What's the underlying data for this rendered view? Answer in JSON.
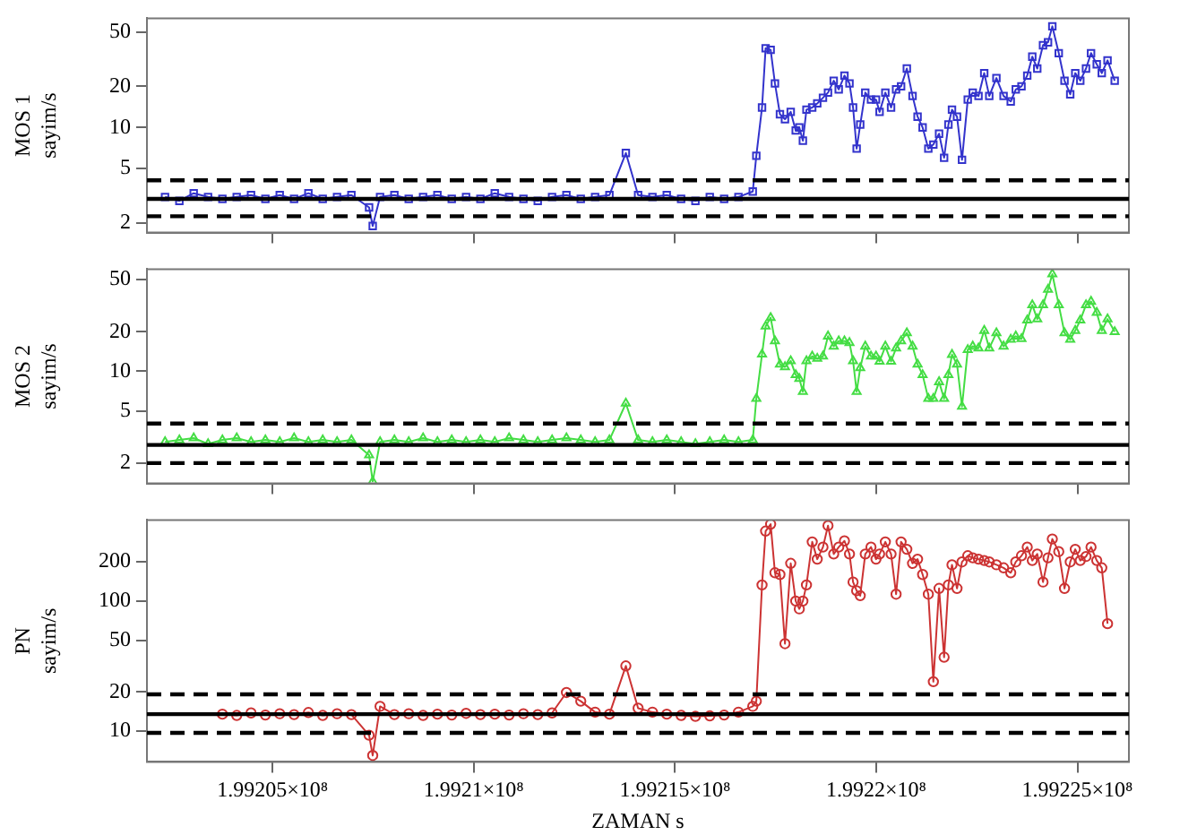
{
  "chart_data": [
    {
      "type": "line",
      "ylabel": "MOS 1\nsayim/s",
      "log": "y",
      "marker": "square",
      "tick_labels": "y",
      "xlim": [
        199201880,
        199226280
      ],
      "ylim": [
        1.7,
        63
      ],
      "yticks": [
        2,
        5,
        10,
        20,
        50
      ],
      "xticks": [
        {
          "value": 199205000,
          "label": null
        },
        {
          "value": 199210000,
          "label": null
        },
        {
          "value": 199215000,
          "label": null
        },
        {
          "value": 199220000,
          "label": null
        },
        {
          "value": 199225000,
          "label": null
        }
      ],
      "x": [
        199202330,
        199202686,
        199203042,
        199203399,
        199203755,
        199204111,
        199204467,
        199204823,
        199205180,
        199205536,
        199205892,
        199206248,
        199206604,
        199206961,
        199207400,
        199207490,
        199207673,
        199208029,
        199208385,
        199208742,
        199209098,
        199209454,
        199209810,
        199210166,
        199210523,
        199210879,
        199211235,
        199211591,
        199211947,
        199212304,
        199212660,
        199213016,
        199213372,
        199213780,
        199214085,
        199214441,
        199214797,
        199215153,
        199215509,
        199215866,
        199216222,
        199216578,
        199216934,
        199217022,
        199217164,
        199217253,
        199217378,
        199217485,
        199217609,
        199217734,
        199217877,
        199218001,
        199218090,
        199218179,
        199218268,
        199218411,
        199218536,
        199218678,
        199218803,
        199218945,
        199219070,
        199219212,
        199219337,
        199219426,
        199219515,
        199219604,
        199219729,
        199219871,
        199219996,
        199220085,
        199220228,
        199220370,
        199220495,
        199220619,
        199220762,
        199220904,
        199221029,
        199221154,
        199221296,
        199221421,
        199221563,
        199221688,
        199221795,
        199221884,
        199222009,
        199222133,
        199222276,
        199222400,
        199222543,
        199222685,
        199222810,
        199222988,
        199223166,
        199223344,
        199223469,
        199223611,
        199223754,
        199223879,
        199224003,
        199224146,
        199224270,
        199224377,
        199224537,
        199224680,
        199224822,
        199224947,
        199225072,
        199225214,
        199225339,
        199225481,
        199225606,
        199225749,
        199225927
      ],
      "series": [
        {
          "color": "#3333cc",
          "values": [
            3.1,
            2.9,
            3.3,
            3.1,
            3.0,
            3.1,
            3.2,
            3.0,
            3.2,
            3.0,
            3.3,
            3.0,
            3.1,
            3.2,
            2.6,
            1.9,
            3.1,
            3.2,
            3.0,
            3.1,
            3.2,
            3.0,
            3.1,
            3.0,
            3.3,
            3.1,
            3.0,
            2.9,
            3.1,
            3.2,
            3.0,
            3.1,
            3.2,
            6.5,
            3.2,
            3.1,
            3.2,
            3.0,
            2.9,
            3.1,
            3.0,
            3.1,
            3.4,
            6.2,
            14,
            38,
            37,
            21,
            12.5,
            11.5,
            13,
            9.5,
            10,
            8,
            13.5,
            14,
            15,
            16.5,
            18,
            22,
            19,
            24,
            21,
            14,
            7,
            10.5,
            18,
            16,
            16,
            13,
            18,
            14,
            19,
            20,
            27,
            17,
            12,
            10,
            7,
            7.5,
            9,
            6,
            10.5,
            13.5,
            12,
            5.8,
            16,
            18,
            17,
            25,
            17,
            23,
            17,
            15.5,
            19,
            20,
            24,
            33,
            27,
            40,
            42,
            55,
            35,
            22,
            17.5,
            25,
            22,
            27,
            35,
            29,
            25,
            31,
            22
          ]
        }
      ],
      "ref_lines": [
        {
          "axis": "y",
          "value": 4.1,
          "line_style": "dashed",
          "color": "#000000"
        },
        {
          "axis": "y",
          "value": 3.0,
          "line_style": "solid",
          "color": "#000000"
        },
        {
          "axis": "y",
          "value": 2.24,
          "line_style": "dashed",
          "color": "#000000"
        }
      ]
    },
    {
      "type": "line",
      "ylabel": "MOS 2\nsayim/s",
      "log": "y",
      "marker": "triangle",
      "tick_labels": "y",
      "xlim": [
        199201880,
        199226280
      ],
      "ylim": [
        1.4,
        60
      ],
      "yticks": [
        2,
        5,
        10,
        20,
        50
      ],
      "xticks": [
        {
          "value": 199205000,
          "label": null
        },
        {
          "value": 199210000,
          "label": null
        },
        {
          "value": 199215000,
          "label": null
        },
        {
          "value": 199220000,
          "label": null
        },
        {
          "value": 199225000,
          "label": null
        }
      ],
      "x": [
        199202330,
        199202686,
        199203042,
        199203399,
        199203755,
        199204111,
        199204467,
        199204823,
        199205180,
        199205536,
        199205892,
        199206248,
        199206604,
        199206961,
        199207400,
        199207490,
        199207673,
        199208029,
        199208385,
        199208742,
        199209098,
        199209454,
        199209810,
        199210166,
        199210523,
        199210879,
        199211235,
        199211591,
        199211947,
        199212304,
        199212660,
        199213016,
        199213372,
        199213780,
        199214085,
        199214441,
        199214797,
        199215153,
        199215509,
        199215866,
        199216222,
        199216578,
        199216934,
        199217022,
        199217164,
        199217253,
        199217378,
        199217485,
        199217609,
        199217734,
        199217877,
        199218001,
        199218090,
        199218179,
        199218268,
        199218411,
        199218536,
        199218678,
        199218803,
        199218945,
        199219070,
        199219212,
        199219337,
        199219426,
        199219515,
        199219604,
        199219729,
        199219871,
        199219996,
        199220085,
        199220228,
        199220370,
        199220495,
        199220619,
        199220762,
        199220904,
        199221029,
        199221154,
        199221296,
        199221421,
        199221563,
        199221688,
        199221795,
        199221884,
        199222009,
        199222133,
        199222276,
        199222400,
        199222543,
        199222685,
        199222810,
        199222988,
        199223166,
        199223344,
        199223469,
        199223611,
        199223754,
        199223879,
        199224003,
        199224146,
        199224270,
        199224377,
        199224537,
        199224680,
        199224822,
        199224947,
        199225072,
        199225214,
        199225339,
        199225481,
        199225606,
        199225749,
        199225927
      ],
      "series": [
        {
          "color": "#44dd44",
          "values": [
            2.9,
            3.0,
            3.1,
            2.8,
            3.0,
            3.1,
            2.9,
            3.0,
            2.9,
            3.1,
            2.9,
            3.0,
            2.9,
            3.0,
            2.3,
            1.45,
            2.9,
            3.0,
            2.9,
            3.1,
            2.9,
            3.0,
            2.9,
            3.0,
            2.9,
            3.1,
            3.0,
            2.9,
            3.0,
            3.1,
            3.0,
            2.9,
            3.0,
            5.7,
            3.0,
            2.9,
            3.0,
            2.9,
            2.8,
            2.9,
            3.0,
            2.9,
            3.0,
            6.2,
            13.5,
            22,
            25.6,
            17,
            11.3,
            10.8,
            12,
            9.4,
            8.8,
            7,
            12,
            13,
            12.5,
            13,
            18.5,
            15.5,
            17,
            17,
            16.5,
            12,
            7,
            10.6,
            15.5,
            13,
            13,
            11.9,
            15.5,
            11.9,
            15,
            17,
            19.6,
            15.5,
            11.3,
            9.4,
            6.2,
            6.2,
            8.3,
            6.2,
            9.4,
            13.4,
            11.3,
            5.4,
            14.6,
            15.5,
            15,
            20.4,
            15,
            19.6,
            15.5,
            17.5,
            18.5,
            17.7,
            24.5,
            32,
            25,
            32,
            42,
            55,
            32,
            19.6,
            17.5,
            20.4,
            24.5,
            32,
            34,
            28,
            20.4,
            25,
            20
          ]
        }
      ],
      "ref_lines": [
        {
          "axis": "y",
          "value": 4.0,
          "line_style": "dashed",
          "color": "#000000"
        },
        {
          "axis": "y",
          "value": 2.75,
          "line_style": "solid",
          "color": "#000000"
        },
        {
          "axis": "y",
          "value": 2.0,
          "line_style": "dashed",
          "color": "#000000"
        }
      ]
    },
    {
      "type": "line",
      "ylabel": "PN\nsayim/s",
      "xlabel": "ZAMAN s",
      "log": "y",
      "marker": "circle",
      "xlim": [
        199201880,
        199226280
      ],
      "ylim": [
        5.8,
        420
      ],
      "yticks": [
        10,
        20,
        50,
        100,
        200
      ],
      "xticks": [
        {
          "value": 199205000,
          "label": "1.99205×10⁸"
        },
        {
          "value": 199210000,
          "label": "1.9921×10⁸"
        },
        {
          "value": 199215000,
          "label": "1.99215×10⁸"
        },
        {
          "value": 199220000,
          "label": "1.9922×10⁸"
        },
        {
          "value": 199225000,
          "label": "1.99225×10⁸"
        }
      ],
      "x": [
        199203755,
        199204111,
        199204467,
        199204823,
        199205180,
        199205536,
        199205892,
        199206248,
        199206604,
        199206961,
        199207400,
        199207490,
        199207673,
        199208029,
        199208385,
        199208742,
        199209098,
        199209454,
        199209810,
        199210166,
        199210523,
        199210879,
        199211235,
        199211591,
        199211947,
        199212304,
        199212660,
        199213016,
        199213372,
        199213780,
        199214085,
        199214441,
        199214797,
        199215153,
        199215509,
        199215866,
        199216222,
        199216578,
        199216934,
        199217022,
        199217164,
        199217253,
        199217378,
        199217485,
        199217609,
        199217734,
        199217877,
        199218001,
        199218090,
        199218179,
        199218268,
        199218411,
        199218536,
        199218678,
        199218803,
        199218945,
        199219070,
        199219212,
        199219337,
        199219426,
        199219515,
        199219604,
        199219729,
        199219871,
        199219996,
        199220085,
        199220228,
        199220370,
        199220495,
        199220619,
        199220762,
        199220904,
        199221029,
        199221154,
        199221296,
        199221421,
        199221563,
        199221688,
        199221795,
        199221884,
        199222009,
        199222133,
        199222276,
        199222400,
        199222543,
        199222685,
        199222810,
        199222988,
        199223166,
        199223344,
        199223469,
        199223611,
        199223754,
        199223879,
        199224003,
        199224146,
        199224270,
        199224377,
        199224537,
        199224680,
        199224822,
        199224947,
        199225072,
        199225214,
        199225339,
        199225481,
        199225606,
        199225749
      ],
      "series": [
        {
          "color": "#cc3333",
          "values": [
            13.5,
            13.2,
            13.8,
            13.3,
            13.6,
            13.4,
            13.9,
            13.2,
            13.6,
            13.4,
            9.3,
            6.5,
            15.5,
            13.4,
            13.6,
            13.2,
            13.5,
            13.3,
            13.7,
            13.4,
            13.5,
            13.3,
            13.6,
            13.4,
            13.8,
            19.8,
            17,
            14,
            13.5,
            31.7,
            15,
            14,
            13.5,
            13.2,
            13.0,
            13.1,
            13.3,
            14,
            15.5,
            17,
            133,
            345,
            390,
            165,
            160,
            47,
            195,
            100,
            87,
            100,
            133,
            285,
            210,
            260,
            380,
            230,
            260,
            290,
            230,
            140,
            120,
            110,
            230,
            260,
            210,
            230,
            285,
            230,
            113,
            285,
            250,
            195,
            210,
            160,
            113,
            24,
            125,
            37,
            133,
            190,
            125,
            200,
            223,
            215,
            210,
            205,
            200,
            190,
            180,
            165,
            200,
            223,
            260,
            205,
            230,
            140,
            215,
            300,
            240,
            125,
            200,
            250,
            205,
            220,
            260,
            205,
            180,
            67
          ]
        }
      ],
      "ref_lines": [
        {
          "axis": "y",
          "value": 19.2,
          "line_style": "dashed",
          "color": "#000000"
        },
        {
          "axis": "y",
          "value": 13.5,
          "line_style": "solid",
          "color": "#000000"
        },
        {
          "axis": "y",
          "value": 9.7,
          "line_style": "dashed",
          "color": "#000000"
        }
      ]
    }
  ]
}
